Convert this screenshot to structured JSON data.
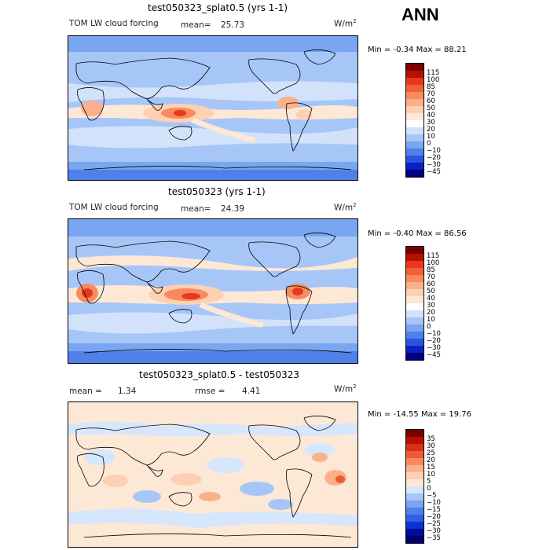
{
  "season": "ANN",
  "panels": [
    {
      "title": "test050323_splat0.5 (yrs 1-1)",
      "variable": "TOM LW cloud forcing",
      "mean_label": "mean=",
      "mean": "25.73",
      "units": "W/m",
      "units_sup": "2",
      "min_label": "Min =",
      "min": "-0.34",
      "max_label": "Max =",
      "max": "88.21",
      "colorbar_labels": [
        "115",
        "100",
        "85",
        "70",
        "60",
        "50",
        "40",
        "30",
        "20",
        "10",
        "0",
        "−10",
        "−20",
        "−30",
        "−45"
      ]
    },
    {
      "title": "test050323 (yrs 1-1)",
      "variable": "TOM LW cloud forcing",
      "mean_label": "mean=",
      "mean": "24.39",
      "units": "W/m",
      "units_sup": "2",
      "min_label": "Min =",
      "min": "-0.40",
      "max_label": "Max =",
      "max": "86.56",
      "colorbar_labels": [
        "115",
        "100",
        "85",
        "70",
        "60",
        "50",
        "40",
        "30",
        "20",
        "10",
        "0",
        "−10",
        "−20",
        "−30",
        "−45"
      ]
    },
    {
      "title": "test050323_splat0.5 - test050323",
      "mean_label": "mean =",
      "mean": "1.34",
      "rmse_label": "rmse =",
      "rmse": "4.41",
      "units": "W/m",
      "units_sup": "2",
      "min_label": "Min =",
      "min": "-14.55",
      "max_label": "Max =",
      "max": "19.76",
      "colorbar_labels": [
        "35",
        "30",
        "25",
        "20",
        "15",
        "10",
        "5",
        "0",
        "−5",
        "−10",
        "−15",
        "−20",
        "−25",
        "−30",
        "−35"
      ]
    }
  ],
  "colors": {
    "field": [
      "#7a0000",
      "#b81000",
      "#e8381c",
      "#f0603a",
      "#f88a60",
      "#fcb08a",
      "#fdd0b4",
      "#fde8d6",
      "#ffffff",
      "#d2e2fb",
      "#a6c6f7",
      "#79a6f0",
      "#5080ea",
      "#2a54e0",
      "#0a20c0",
      "#000080"
    ],
    "diff": [
      "#7a0000",
      "#b81000",
      "#d8301a",
      "#ee5a34",
      "#f88a60",
      "#fcb08a",
      "#fdd0b4",
      "#fde8d6",
      "#d6e6fc",
      "#a6c6f7",
      "#79a6f0",
      "#5080ea",
      "#3060e4",
      "#1030d0",
      "#000c96",
      "#000070"
    ]
  }
}
